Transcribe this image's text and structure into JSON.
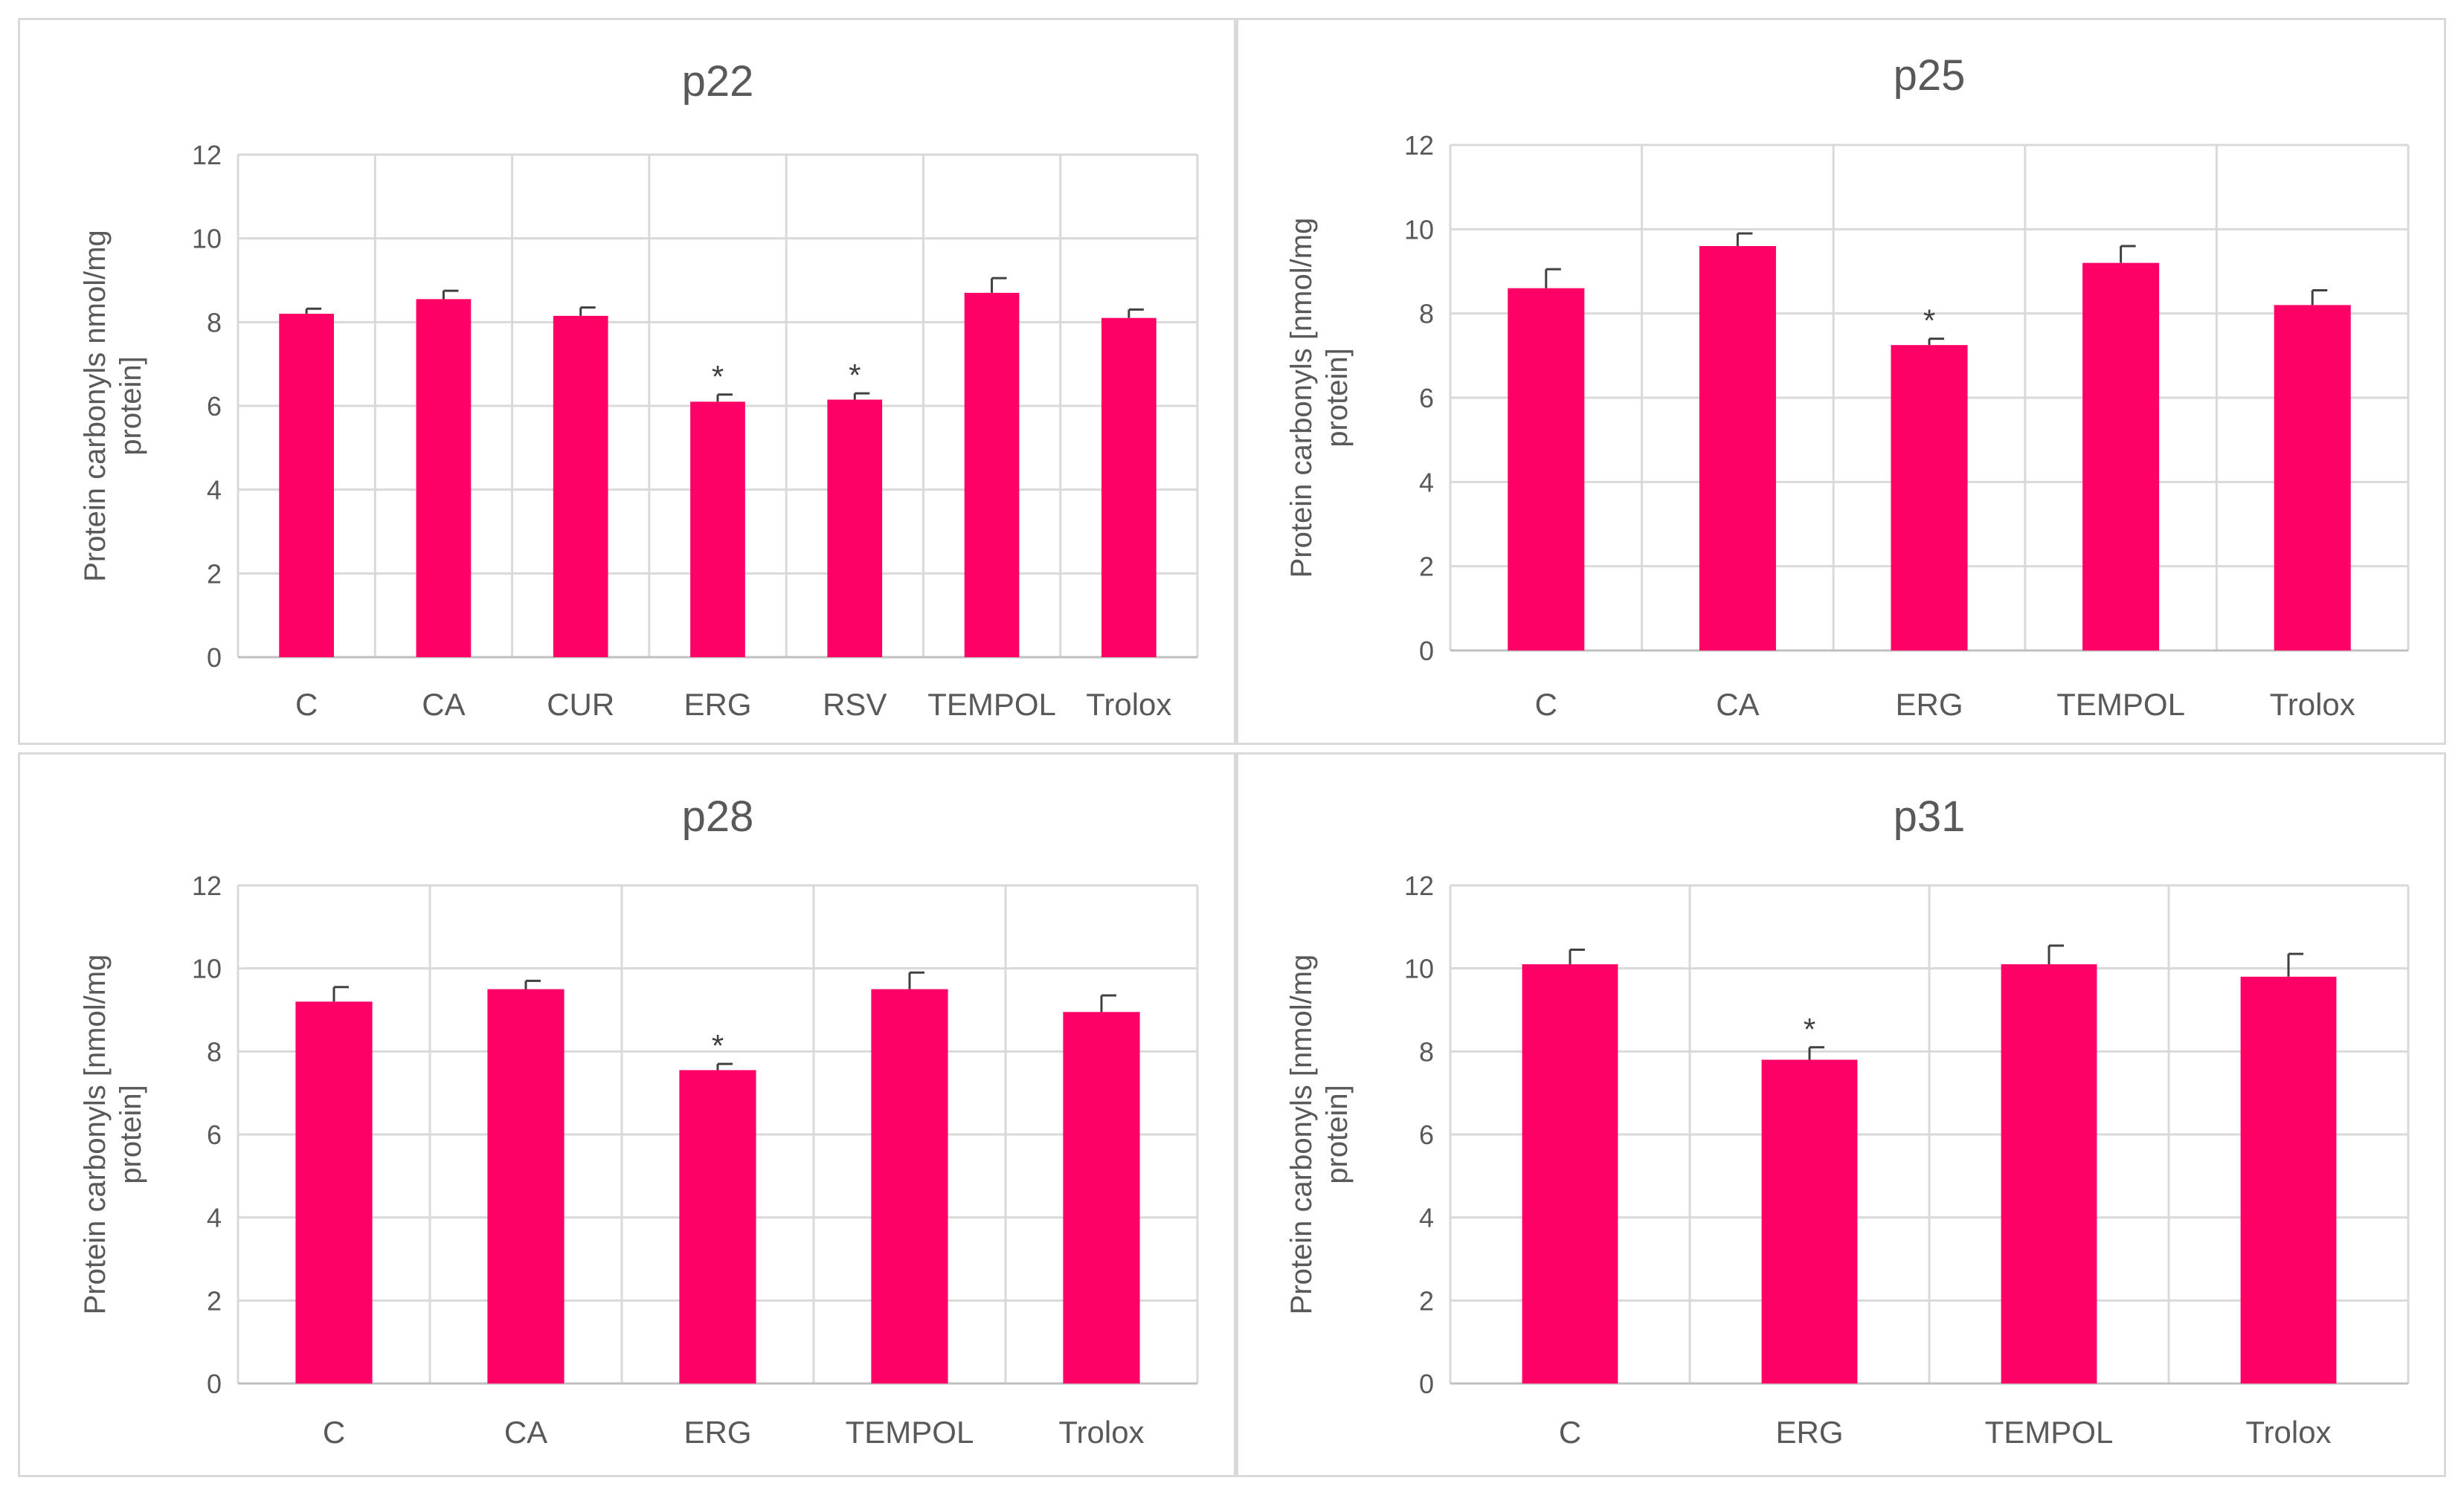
{
  "chart_data": [
    {
      "type": "bar",
      "title": "p22",
      "ylabel_lines": [
        "Protein carbonyls nmol/mg",
        "protein]"
      ],
      "ylim": [
        0,
        12
      ],
      "yticks": [
        0,
        2,
        4,
        6,
        8,
        10,
        12
      ],
      "categories": [
        "C",
        "CA",
        "CUR",
        "ERG",
        "RSV",
        "TEMPOL",
        "Trolox"
      ],
      "values": [
        8.2,
        8.55,
        8.15,
        6.1,
        6.15,
        8.7,
        8.1
      ],
      "errors": [
        0.12,
        0.2,
        0.2,
        0.17,
        0.15,
        0.35,
        0.2
      ],
      "significance": [
        "",
        "",
        "",
        "*",
        "*",
        "",
        ""
      ],
      "color": "#ff0066"
    },
    {
      "type": "bar",
      "title": "p25",
      "ylabel_lines": [
        "Protein carbonyls [nmol/mg",
        "protein]"
      ],
      "ylim": [
        0,
        12
      ],
      "yticks": [
        0,
        2,
        4,
        6,
        8,
        10,
        12
      ],
      "categories": [
        "C",
        "CA",
        "ERG",
        "TEMPOL",
        "Trolox"
      ],
      "values": [
        8.6,
        9.6,
        7.25,
        9.2,
        8.2
      ],
      "errors": [
        0.45,
        0.3,
        0.15,
        0.4,
        0.35
      ],
      "significance": [
        "",
        "",
        "*",
        "",
        ""
      ],
      "color": "#ff0066"
    },
    {
      "type": "bar",
      "title": "p28",
      "ylabel_lines": [
        "Protein carbonyls [nmol/mg",
        "protein]"
      ],
      "ylim": [
        0,
        12
      ],
      "yticks": [
        0,
        2,
        4,
        6,
        8,
        10,
        12
      ],
      "categories": [
        "C",
        "CA",
        "ERG",
        "TEMPOL",
        "Trolox"
      ],
      "values": [
        9.2,
        9.5,
        7.55,
        9.5,
        8.95
      ],
      "errors": [
        0.35,
        0.2,
        0.15,
        0.4,
        0.4
      ],
      "significance": [
        "",
        "",
        "*",
        "",
        ""
      ],
      "color": "#ff0066"
    },
    {
      "type": "bar",
      "title": "p31",
      "ylabel_lines": [
        "Protein carbonyls [nmol/mg",
        "protein]"
      ],
      "ylim": [
        0,
        12
      ],
      "yticks": [
        0,
        2,
        4,
        6,
        8,
        10,
        12
      ],
      "categories": [
        "C",
        "ERG",
        "TEMPOL",
        "Trolox"
      ],
      "values": [
        10.1,
        7.8,
        10.1,
        9.8
      ],
      "errors": [
        0.35,
        0.3,
        0.45,
        0.55
      ],
      "significance": [
        "",
        "*",
        "",
        ""
      ],
      "color": "#ff0066"
    }
  ]
}
